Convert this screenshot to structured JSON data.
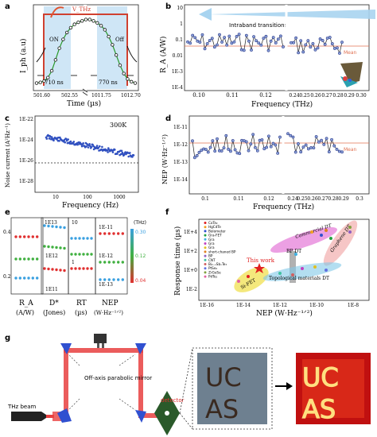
{
  "figure": {
    "panel_labels": [
      "a",
      "b",
      "c",
      "d",
      "e",
      "f",
      "g"
    ]
  },
  "chart_data": [
    {
      "id": "a",
      "type": "line",
      "ylabel": "I_ph (a.u)",
      "xlabel": "Time (µs)",
      "vthz_label": "V_THz",
      "on_label": "ON",
      "off_label": "Off",
      "x_ticks": [
        "501.60",
        "502.55",
        "1011.75",
        "1012.70"
      ],
      "annotations": [
        "710 ns",
        "770 ns"
      ],
      "series": [
        {
          "values": [
            0.04,
            0.05,
            0.07,
            0.12,
            0.22,
            0.38,
            0.55,
            0.68,
            0.78,
            0.85,
            0.9,
            0.93,
            0.95,
            0.97,
            0.97,
            0.95,
            0.92,
            0.88,
            0.82,
            0.72,
            0.6,
            0.45,
            0.3,
            0.18,
            0.1,
            0.06,
            0.04
          ]
        }
      ],
      "colors": {
        "trace": "#111111",
        "fit": "#2a9a2a",
        "gate": "#d04030",
        "shade": "#cfe6f6"
      }
    },
    {
      "id": "b",
      "type": "line",
      "ylabel": "R_A (A/W)",
      "xlabel": "Frequency (THz)",
      "x_ticks": [
        "0.10",
        "0.11",
        "0.12",
        "0.24",
        "0.25",
        "0.26",
        "0.27",
        "0.28",
        "0.29",
        "0.30"
      ],
      "y_ticks": [
        "10",
        "1",
        "0.1",
        "0.01",
        "1E-3",
        "1E-4"
      ],
      "arrow_label": "Intraband transitions",
      "mean_label": "Mean",
      "colors": {
        "marker": "#2b3a8a",
        "mean": "#e07050",
        "arrow": "#a8d4f0"
      }
    },
    {
      "id": "c",
      "type": "scatter",
      "ylabel": "Noise current (A²Hz⁻¹)",
      "xlabel": "Frequency (Hz)",
      "temperature": "300K",
      "x_ticks": [
        "10",
        "100",
        "1000"
      ],
      "y_ticks": [
        "1E-22",
        "1E-24",
        "1E-26",
        "1E-28"
      ],
      "colors": {
        "marker": "#3050c0"
      }
    },
    {
      "id": "d",
      "type": "line",
      "ylabel": "NEP (W·Hz⁻¹ᐟ²)",
      "xlabel": "Frequency (THz)",
      "x_ticks": [
        "0.1",
        "0.11",
        "0.12",
        "0.24",
        "0.25",
        "0.26",
        "0.27",
        "0.28",
        "0.29",
        "0.3"
      ],
      "y_ticks": [
        "1E-11",
        "1E-12",
        "1E-13",
        "1E-14"
      ],
      "mean_label": "Mean",
      "colors": {
        "marker": "#2b3a8a",
        "mean": "#e07050"
      }
    },
    {
      "id": "e",
      "type": "scatter",
      "categories": [
        "R_A (A/W)",
        "D* (Jones)",
        "RT (µs)",
        "NEP (W·Hz⁻¹ᐟ²)"
      ],
      "category_lines": [
        [
          "R_A",
          "(A/W)"
        ],
        [
          "D*",
          "(Jones)"
        ],
        [
          "RT",
          "(µs)"
        ],
        [
          "NEP",
          "(W·Hz⁻¹ᐟ²)"
        ]
      ],
      "left_ticks": [
        "0.4",
        "0.2"
      ],
      "d_ticks": [
        "1E13",
        "1E12",
        "1E11"
      ],
      "rt_ticks": [
        "10",
        "1"
      ],
      "nep_ticks": [
        "1E-11",
        "1E-12",
        "1E-13"
      ],
      "colorbar_label": "(THz)",
      "colorbar_ticks": [
        "0.30",
        "0.12",
        "0.04"
      ],
      "colors": {
        "high": "#3aa0e0",
        "mid": "#40b040",
        "low": "#e03030"
      }
    },
    {
      "id": "f",
      "type": "scatter",
      "ylabel": "Response time (µs)",
      "xlabel": "NEP (W·Hz⁻¹ᐟ²)",
      "x_ticks": [
        "1E-16",
        "1E-14",
        "1E-12",
        "1E-10",
        "1E-8"
      ],
      "y_ticks": [
        "1E+4",
        "1E+2",
        "1E+0",
        "1E-2"
      ],
      "legend": [
        "CoTe₂",
        "HgCdTe",
        "Bolometer",
        "Gra-FET",
        "Gra",
        "Gra",
        "Gra",
        "short-chaned BP",
        "BP",
        "CNT",
        "Bi₂₋ₓSbₓTe₃",
        "PtSe₂",
        "ZrGeSe",
        "PdTe₂"
      ],
      "this_work_label": "This work",
      "region_labels": [
        "Commercial DT",
        "Graphene DT",
        "BP DT",
        "Si-FET",
        "Topological materials DT"
      ],
      "colors": {
        "commercial": "#e060d0",
        "graphene": "#f0a0a0",
        "bp": "#909090",
        "sifet": "#f0e050",
        "topo": "#80c8e8"
      }
    }
  ],
  "panel_g": {
    "labels": {
      "mirror": "Off-axis parabolic mirror",
      "detector": "detector",
      "source": "THz beam"
    },
    "sample_text": [
      "UC",
      "AS"
    ]
  }
}
